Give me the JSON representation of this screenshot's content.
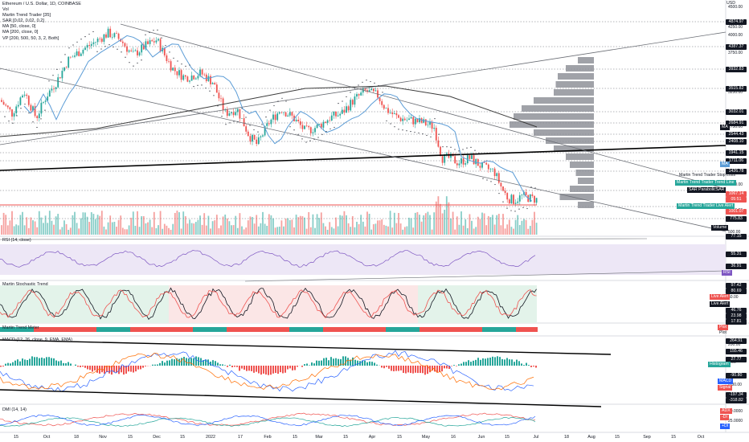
{
  "symbol": {
    "title": "Ethereum / U.S. Dollar, 1D, COINBASE",
    "currency": "USD"
  },
  "legend": [
    "Vol",
    "Martin Trend Trader [35]",
    "SAR [0.02, 0.02, 0.2]",
    "MA [50, close, 0]",
    "MA [200, close, 0]",
    "VP [200, 500, 50, 3, 2, Both]"
  ],
  "price_axis": {
    "ticks": [
      "4500.00",
      "4250.00",
      "4000.00",
      "3750.00",
      "3500.00",
      "3250.00",
      "2750.00",
      "2250.00",
      "1750.00",
      "1500.00",
      "1250.00",
      "1000.00",
      "500.00"
    ],
    "badges": [
      {
        "text": "4874.97",
        "color": "#131722"
      },
      {
        "text": "4387.37",
        "color": "#131722"
      },
      {
        "text": "3932.83",
        "color": "#131722"
      },
      {
        "text": "3515.82",
        "color": "#131722"
      },
      {
        "text": "3032.01",
        "color": "#131722"
      },
      {
        "text": "2684.91",
        "color": "#131722"
      },
      {
        "text": "2544.43",
        "color": "#131722"
      },
      {
        "text": "2408.10",
        "color": "#131722"
      },
      {
        "text": "1941.15",
        "color": "#131722"
      },
      {
        "text": "1711.06",
        "color": "#131722"
      },
      {
        "text": "1426.78",
        "color": "#131722"
      },
      {
        "text": "1067.14",
        "color": "#ef5350"
      },
      {
        "text": "05:51",
        "color": "#ef5350"
      },
      {
        "text": "1001.07",
        "color": "#ef5350"
      },
      {
        "text": "775.83",
        "color": "#131722"
      },
      {
        "text": "77.15",
        "color": "#131722"
      }
    ],
    "tags": [
      {
        "text": "MA",
        "color": "#131722"
      },
      {
        "text": "MA",
        "color": "#5b9cd6"
      },
      {
        "text": "Martin Trend Trader Stop Loss",
        "color": "transparent",
        "text_color": "#131722"
      },
      {
        "text": "Martin Trend Trader Trend Line",
        "color": "#26a69a"
      },
      {
        "text": "SAR ParabolicSAR",
        "color": "#131722"
      },
      {
        "text": "Martin Trend Trader Live Alert",
        "color": "#26a69a"
      },
      {
        "text": "Volume",
        "color": "#131722"
      }
    ]
  },
  "rsi": {
    "title": "RSI (14, close)",
    "badges": [
      "55.31",
      "36.91"
    ],
    "tag": "RSI"
  },
  "stoch": {
    "title": "Martin Stochastic Trend",
    "ticks": [
      "50.00"
    ],
    "badges": [
      "97.42",
      "80.69",
      "46.76",
      "23.98",
      "17.81"
    ],
    "tags": [
      "Live Alert",
      "Live Alert"
    ]
  },
  "meter": {
    "title": "Martin Trend Meter",
    "tags": [
      "Plot",
      "Plot"
    ]
  },
  "macd": {
    "title": "MACD (12, 26, close, 9, EMA, EMA)",
    "ticks": [
      "200.00",
      "0.00",
      "-200.00"
    ],
    "badges": [
      "264.91",
      "155.46",
      "27.77",
      "-90.80",
      "-197.34",
      "-318.82"
    ],
    "tags": [
      "Histogram",
      "MACD",
      "Signal"
    ]
  },
  "dmi": {
    "title": "DMI (14, 14)",
    "ticks": [
      "50.0000",
      "25.0000"
    ],
    "tags": [
      "ADX",
      "-DI",
      "+DI"
    ]
  },
  "time_axis": [
    "15",
    "Oct",
    "18",
    "Nov",
    "15",
    "Dec",
    "15",
    "2022",
    "17",
    "Feb",
    "15",
    "Mar",
    "15",
    "Apr",
    "15",
    "May",
    "16",
    "Jun",
    "15",
    "Jul",
    "18",
    "Aug",
    "15",
    "Sep",
    "15",
    "Oct"
  ],
  "colors": {
    "up": "#26a69a",
    "down": "#ef5350",
    "ma50": "#5b9cd6",
    "ma200": "#3c3c3c",
    "vp": "#8f9299",
    "rsi_bg": "#ede7f6"
  }
}
